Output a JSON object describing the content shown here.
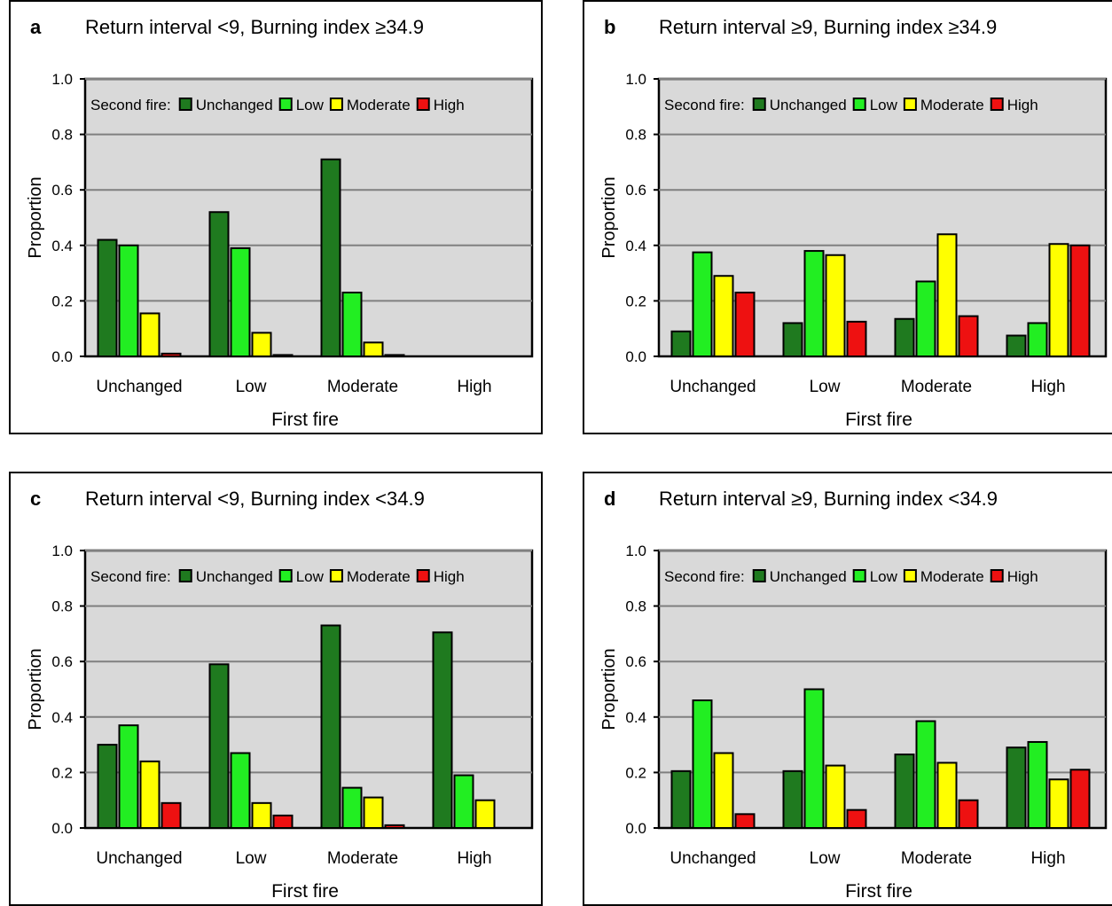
{
  "legend_prefix": "Second fire:",
  "series_colors": [
    "#1f7a1f",
    "#22ee22",
    "#ffff00",
    "#ee1111"
  ],
  "chart_data": [
    {
      "type": "bar",
      "panel_label": "a",
      "title": "Return interval <9, Burning index ≥34.9",
      "xlabel": "First fire",
      "ylabel": "Proportion",
      "ylim": [
        0,
        1.0
      ],
      "yticks": [
        "0.0",
        "0.2",
        "0.4",
        "0.6",
        "0.8",
        "1.0"
      ],
      "grid": true,
      "legend_position": "top",
      "categories": [
        "Unchanged",
        "Low",
        "Moderate",
        "High"
      ],
      "series": [
        {
          "name": "Unchanged",
          "values": [
            0.42,
            0.52,
            0.71,
            0
          ]
        },
        {
          "name": "Low",
          "values": [
            0.4,
            0.39,
            0.23,
            0
          ]
        },
        {
          "name": "Moderate",
          "values": [
            0.155,
            0.085,
            0.05,
            0
          ]
        },
        {
          "name": "High",
          "values": [
            0.01,
            0.005,
            0.005,
            0
          ]
        }
      ]
    },
    {
      "type": "bar",
      "panel_label": "b",
      "title": "Return interval ≥9, Burning index ≥34.9",
      "xlabel": "First fire",
      "ylabel": "Proportion",
      "ylim": [
        0,
        1.0
      ],
      "yticks": [
        "0.0",
        "0.2",
        "0.4",
        "0.6",
        "0.8",
        "1.0"
      ],
      "grid": true,
      "legend_position": "top",
      "categories": [
        "Unchanged",
        "Low",
        "Moderate",
        "High"
      ],
      "series": [
        {
          "name": "Unchanged",
          "values": [
            0.09,
            0.12,
            0.135,
            0.075
          ]
        },
        {
          "name": "Low",
          "values": [
            0.375,
            0.38,
            0.27,
            0.12
          ]
        },
        {
          "name": "Moderate",
          "values": [
            0.29,
            0.365,
            0.44,
            0.405
          ]
        },
        {
          "name": "High",
          "values": [
            0.23,
            0.125,
            0.145,
            0.4
          ]
        }
      ]
    },
    {
      "type": "bar",
      "panel_label": "c",
      "title": "Return interval <9, Burning index <34.9",
      "xlabel": "First fire",
      "ylabel": "Proportion",
      "ylim": [
        0,
        1.0
      ],
      "yticks": [
        "0.0",
        "0.2",
        "0.4",
        "0.6",
        "0.8",
        "1.0"
      ],
      "grid": true,
      "legend_position": "top",
      "categories": [
        "Unchanged",
        "Low",
        "Moderate",
        "High"
      ],
      "series": [
        {
          "name": "Unchanged",
          "values": [
            0.3,
            0.59,
            0.73,
            0.705
          ]
        },
        {
          "name": "Low",
          "values": [
            0.37,
            0.27,
            0.145,
            0.19
          ]
        },
        {
          "name": "Moderate",
          "values": [
            0.24,
            0.09,
            0.11,
            0.1
          ]
        },
        {
          "name": "High",
          "values": [
            0.09,
            0.045,
            0.01,
            0
          ]
        }
      ]
    },
    {
      "type": "bar",
      "panel_label": "d",
      "title": "Return interval ≥9, Burning index <34.9",
      "xlabel": "First fire",
      "ylabel": "Proportion",
      "ylim": [
        0,
        1.0
      ],
      "yticks": [
        "0.0",
        "0.2",
        "0.4",
        "0.6",
        "0.8",
        "1.0"
      ],
      "grid": true,
      "legend_position": "top",
      "categories": [
        "Unchanged",
        "Low",
        "Moderate",
        "High"
      ],
      "series": [
        {
          "name": "Unchanged",
          "values": [
            0.205,
            0.205,
            0.265,
            0.29
          ]
        },
        {
          "name": "Low",
          "values": [
            0.46,
            0.5,
            0.385,
            0.31
          ]
        },
        {
          "name": "Moderate",
          "values": [
            0.27,
            0.225,
            0.235,
            0.175
          ]
        },
        {
          "name": "High",
          "values": [
            0.05,
            0.065,
            0.1,
            0.21
          ]
        }
      ]
    }
  ]
}
